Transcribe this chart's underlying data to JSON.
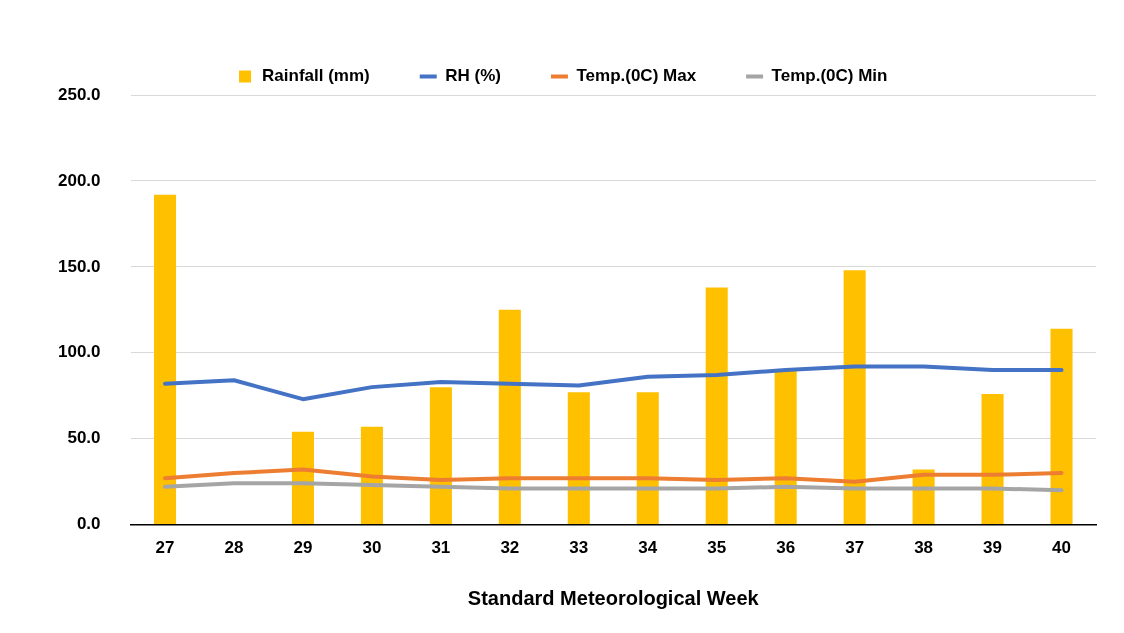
{
  "chart_data": {
    "type": "bar",
    "xlabel": "Standard Meteorological Week",
    "categories": [
      "27",
      "28",
      "29",
      "30",
      "31",
      "32",
      "33",
      "34",
      "35",
      "36",
      "37",
      "38",
      "39",
      "40"
    ],
    "series": [
      {
        "name": "Rainfall (mm)",
        "type": "bar",
        "color": "#ffc000",
        "values": [
          192,
          0,
          54,
          57,
          80,
          125,
          77,
          77,
          138,
          90,
          148,
          32,
          76,
          114
        ]
      },
      {
        "name": "RH (%)",
        "type": "line",
        "color": "#4472c4",
        "values": [
          82,
          84,
          73,
          80,
          83,
          82,
          81,
          86,
          87,
          90,
          92,
          92,
          90,
          90
        ]
      },
      {
        "name": "Temp.(0C) Max",
        "type": "line",
        "color": "#ed7d31",
        "values": [
          27,
          30,
          32,
          28,
          26,
          27,
          27,
          27,
          26,
          27,
          25,
          29,
          29,
          30
        ]
      },
      {
        "name": "Temp.(0C) Min",
        "type": "line",
        "color": "#a5a5a5",
        "values": [
          22,
          24,
          24,
          23,
          22,
          21,
          21,
          21,
          21,
          22,
          21,
          21,
          21,
          20
        ]
      }
    ],
    "ylim": [
      0,
      250
    ],
    "yticks": [
      {
        "value": 0,
        "label": "0.0"
      },
      {
        "value": 50,
        "label": "50.0"
      },
      {
        "value": 100,
        "label": "100.0"
      },
      {
        "value": 150,
        "label": "150.0"
      },
      {
        "value": 200,
        "label": "200.0"
      },
      {
        "value": 250,
        "label": "250.0"
      }
    ],
    "grid": "y",
    "legend": "top",
    "marker": "none",
    "line_style": "solid"
  }
}
